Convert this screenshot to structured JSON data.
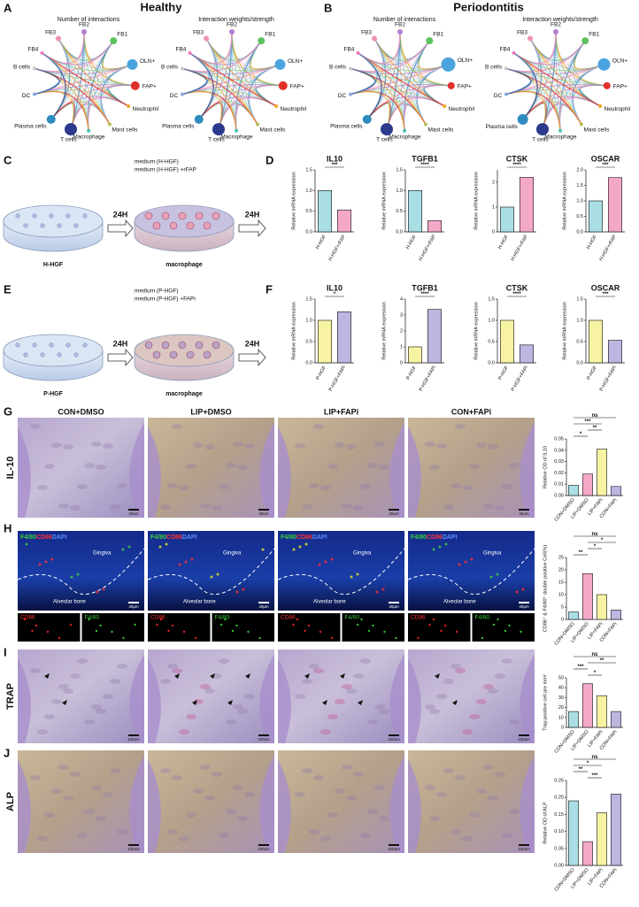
{
  "panel_labels": [
    "A",
    "B",
    "C",
    "D",
    "E",
    "F",
    "G",
    "H",
    "I",
    "J"
  ],
  "networks": {
    "titles": [
      "Healthy",
      "Periodontitis"
    ],
    "subtitles": [
      "Number of interactions",
      "Interaction weights/strength"
    ],
    "nodes": [
      "FB3",
      "FB2",
      "FB1",
      "OLN+",
      "FAP+",
      "Neutrophil",
      "Mast cells",
      "Macrophage",
      "T cells",
      "Plasma cells",
      "DC",
      "B cells",
      "FB4"
    ]
  },
  "schematics": [
    {
      "media": [
        "medium (H-HGF)",
        "medium (H-HGF) +rFAP"
      ],
      "time": "24H",
      "source": "H-HGF",
      "target": "macrophage"
    },
    {
      "media": [
        "medium (P-HGF)",
        "medium (P-HGF) +FAPi"
      ],
      "time": "24H",
      "source": "P-HGF",
      "target": "macrophage"
    }
  ],
  "histology": {
    "groups": [
      "CON+DMSO",
      "LIP+DMSO",
      "LIP+FAPi",
      "CON+FAPi"
    ],
    "rows": [
      {
        "label": "IL-10",
        "scale": "40um"
      },
      {
        "stain": [
          "F4/80",
          "CD86",
          "DAPI"
        ],
        "regions": [
          "Gingiva",
          "Alveolar bone"
        ],
        "channels": [
          "CD86",
          "F4/80"
        ],
        "scale": "40μm"
      },
      {
        "label": "TRAP",
        "scale": "100um"
      },
      {
        "label": "ALP",
        "scale": "100um"
      }
    ]
  },
  "chart_data": [
    {
      "type": "bar",
      "title": "IL10",
      "y_label": "Relative mRNA expression",
      "categories": [
        "H-HGF",
        "H-HGF+rFAP"
      ],
      "values": [
        1.0,
        0.53
      ],
      "colors": [
        "#a9dfe4",
        "#f4a8c8"
      ],
      "ylim": [
        0,
        1.5
      ],
      "yticks": [
        {
          "value": 0,
          "label": "0.0"
        },
        0.5,
        {
          "value": 1,
          "label": "1.0"
        },
        1.5
      ],
      "significance": [
        "***"
      ]
    },
    {
      "type": "bar",
      "title": "TGFB1",
      "y_label": "Relative mRNA expression",
      "categories": [
        "H-HGF",
        "H-HGF+rFAP"
      ],
      "values": [
        1.0,
        0.27
      ],
      "colors": [
        "#a9dfe4",
        "#f4a8c8"
      ],
      "ylim": [
        0,
        1.5
      ],
      "yticks": [
        {
          "value": 0,
          "label": "0.0"
        },
        0.5,
        {
          "value": 1,
          "label": "1.0"
        },
        1.5
      ],
      "significance": [
        "****"
      ]
    },
    {
      "type": "bar",
      "title": "CTSK",
      "y_label": "Relative mRNA expression",
      "categories": [
        "H-HGF",
        "H-HGF+rFAP"
      ],
      "values": [
        1.0,
        2.2
      ],
      "colors": [
        "#a9dfe4",
        "#f4a8c8"
      ],
      "ylim": [
        0,
        2.5
      ],
      "yticks": [
        0,
        1,
        2
      ],
      "significance": [
        "****"
      ]
    },
    {
      "type": "bar",
      "title": "OSCAR",
      "y_label": "Relative mRNA expression",
      "categories": [
        "H-HGF",
        "H-HGF+rFAP"
      ],
      "values": [
        1.0,
        1.75
      ],
      "colors": [
        "#a9dfe4",
        "#f4a8c8"
      ],
      "ylim": [
        0,
        2
      ],
      "yticks": [
        {
          "value": 0,
          "label": "0.0"
        },
        0.5,
        {
          "value": 1,
          "label": "1.0"
        },
        1.5,
        {
          "value": 2,
          "label": "2.0"
        }
      ],
      "significance": [
        "***"
      ]
    },
    {
      "type": "bar",
      "title": "IL10",
      "y_label": "Relative mRNA expression",
      "categories": [
        "P-HGF",
        "P-HGF+FAPi"
      ],
      "values": [
        1.0,
        1.2
      ],
      "colors": [
        "#f7f3a3",
        "#bcb6e0"
      ],
      "ylim": [
        0,
        1.5
      ],
      "yticks": [
        {
          "value": 0,
          "label": "0.0"
        },
        0.5,
        {
          "value": 1,
          "label": "1.0"
        },
        1.5
      ],
      "significance": [
        "*"
      ]
    },
    {
      "type": "bar",
      "title": "TGFB1",
      "y_label": "Relative mRNA expression",
      "categories": [
        "P-HGF",
        "P-HGF+FAPi"
      ],
      "values": [
        1.0,
        3.35
      ],
      "colors": [
        "#f7f3a3",
        "#bcb6e0"
      ],
      "ylim": [
        0,
        4
      ],
      "yticks": [
        0,
        1,
        2,
        3,
        4
      ],
      "significance": [
        "****"
      ]
    },
    {
      "type": "bar",
      "title": "CTSK",
      "y_label": "Relative mRNA expression",
      "categories": [
        "P-HGF",
        "P-HGF+FAPi"
      ],
      "values": [
        1.0,
        0.42
      ],
      "colors": [
        "#f7f3a3",
        "#bcb6e0"
      ],
      "ylim": [
        0,
        1.5
      ],
      "yticks": [
        {
          "value": 0,
          "label": "0.0"
        },
        0.5,
        {
          "value": 1,
          "label": "1.0"
        },
        1.5
      ],
      "significance": [
        "****"
      ]
    },
    {
      "type": "bar",
      "title": "OSCAR",
      "y_label": "Relative mRNA expression",
      "categories": [
        "P-HGF",
        "P-HGF+FAPi"
      ],
      "values": [
        1.0,
        0.53
      ],
      "colors": [
        "#f7f3a3",
        "#bcb6e0"
      ],
      "ylim": [
        0,
        1.5
      ],
      "yticks": [
        {
          "value": 0,
          "label": "0.0"
        },
        0.5,
        {
          "value": 1,
          "label": "1.0"
        },
        1.5
      ],
      "significance": [
        "***"
      ]
    },
    {
      "type": "bar",
      "y_label": "Relative OD of IL10",
      "categories": [
        "CON+DMSO",
        "LIP+DMSO",
        "LIP+FAPi",
        "CON+FAPi"
      ],
      "values": [
        0.009,
        0.019,
        0.041,
        0.008
      ],
      "colors": [
        "#a9dfe4",
        "#f4a8c8",
        "#f7f3a3",
        "#bcb6e0"
      ],
      "ylim": [
        0,
        0.05
      ],
      "yticks": [
        {
          "value": 0,
          "label": "0.00"
        },
        0.01,
        0.02,
        0.03,
        0.04,
        0.05
      ],
      "significance": [
        "ns",
        "***",
        "**",
        "*"
      ]
    },
    {
      "type": "bar",
      "y_label": "CD86⁺ & F4/80⁺ double positive Cell(%)",
      "categories": [
        "CON+DMSO",
        "LIP+DMSO",
        "LIP+FAPi",
        "CON+FAPi"
      ],
      "values": [
        3,
        18.5,
        10,
        3.8
      ],
      "colors": [
        "#a9dfe4",
        "#f4a8c8",
        "#f7f3a3",
        "#bcb6e0"
      ],
      "ylim": [
        0,
        25
      ],
      "yticks": [
        0,
        5,
        10,
        15,
        20,
        25
      ],
      "significance": [
        "ns",
        "*",
        "*",
        "**"
      ]
    },
    {
      "type": "bar",
      "y_label": "Trap-positive cell pre mm²",
      "categories": [
        "CON+DMSO",
        "LIP+DMSO",
        "LIP+FAPi",
        "CON+FAPi"
      ],
      "values": [
        16,
        44,
        32,
        16
      ],
      "colors": [
        "#a9dfe4",
        "#f4a8c8",
        "#f7f3a3",
        "#bcb6e0"
      ],
      "ylim": [
        0,
        50
      ],
      "yticks": [
        0,
        10,
        20,
        30,
        40,
        50
      ],
      "significance": [
        "ns",
        "**",
        "***",
        "*"
      ]
    },
    {
      "type": "bar",
      "y_label": "Relative OD of ALP",
      "categories": [
        "CON+DMSO",
        "LIP+DMSO",
        "LIP+FAPi",
        "CON+FAPi"
      ],
      "values": [
        0.19,
        0.07,
        0.155,
        0.21
      ],
      "colors": [
        "#a9dfe4",
        "#f4a8c8",
        "#f7f3a3",
        "#bcb6e0"
      ],
      "ylim": [
        0,
        0.25
      ],
      "yticks": [
        {
          "value": 0,
          "label": "0.00"
        },
        0.05,
        {
          "value": 0.1,
          "label": "0.10"
        },
        0.15,
        {
          "value": 0.2,
          "label": "0.20"
        },
        {
          "value": 0.25,
          "label": "0.25"
        }
      ],
      "significance": [
        "ns",
        "*",
        "**",
        "***"
      ]
    }
  ]
}
